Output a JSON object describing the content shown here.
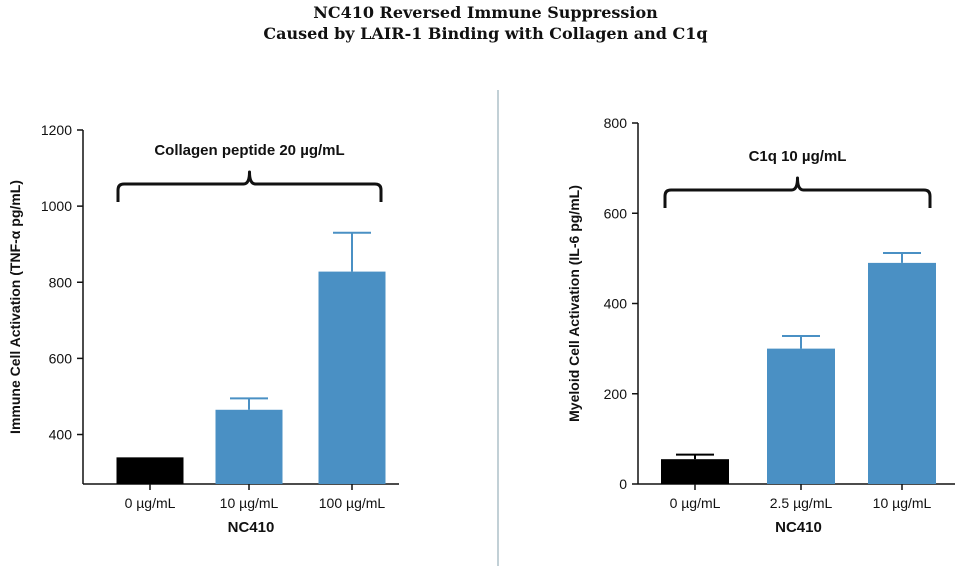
{
  "title_lines": [
    "NC410 Reversed Immune Suppression",
    "Caused by LAIR-1 Binding with Collagen and C1q"
  ],
  "colors": {
    "control": "#000000",
    "treated": "#4a90c4",
    "divider": "#c2d0d6",
    "axis": "#111111"
  },
  "chart_data": [
    {
      "type": "bar",
      "title": "",
      "bracket_label": "Collagen peptide 20 µg/mL",
      "xlabel": "NC410",
      "ylabel": "Immune Cell Activation (TNF-α pg/mL)",
      "categories": [
        "0 µg/mL",
        "10 µg/mL",
        "100 µg/mL"
      ],
      "values": [
        340,
        465,
        828
      ],
      "errors": [
        0,
        30,
        102
      ],
      "bar_colors": [
        "#000000",
        "#4a90c4",
        "#4a90c4"
      ],
      "ylim": [
        270,
        1200
      ],
      "yticks": [
        400,
        600,
        800,
        1000,
        1200
      ],
      "ytick_labels": [
        "400",
        "600",
        "800",
        "1000",
        "1200"
      ]
    },
    {
      "type": "bar",
      "title": "",
      "bracket_label": "C1q 10 µg/mL",
      "xlabel": "NC410",
      "ylabel": "Myeloid Cell Activation (IL-6 pg/mL)",
      "categories": [
        "0 µg/mL",
        "2.5 µg/mL",
        "10 µg/mL"
      ],
      "values": [
        55,
        300,
        490
      ],
      "errors": [
        10,
        28,
        22
      ],
      "bar_colors": [
        "#000000",
        "#4a90c4",
        "#4a90c4"
      ],
      "ylim": [
        0,
        800
      ],
      "yticks": [
        0,
        200,
        400,
        600,
        800
      ],
      "ytick_labels": [
        "0",
        "200",
        "400",
        "600",
        "800"
      ]
    }
  ]
}
